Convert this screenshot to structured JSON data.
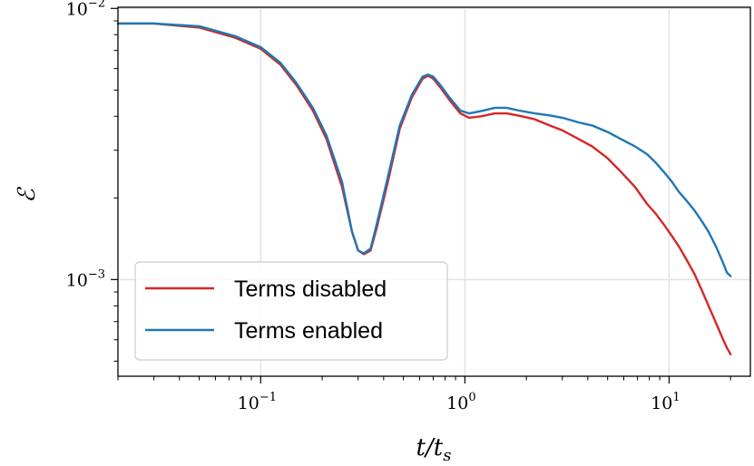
{
  "chart_data": {
    "type": "line",
    "xlabel": "t/t_s",
    "ylabel": "ℰ",
    "x_scale": "log",
    "y_scale": "log",
    "xlim": [
      0.02,
      25
    ],
    "ylim": [
      0.00044,
      0.0101
    ],
    "x_ticks": [
      {
        "value": 0.1,
        "base": "10",
        "exp": "−1"
      },
      {
        "value": 1,
        "base": "10",
        "exp": "0"
      },
      {
        "value": 10,
        "base": "10",
        "exp": "1"
      }
    ],
    "y_ticks": [
      {
        "value": 0.001,
        "base": "10",
        "exp": "−3"
      },
      {
        "value": 0.01,
        "base": "10",
        "exp": "−2"
      }
    ],
    "grid": true,
    "legend": {
      "placement": "lower-left"
    },
    "series": [
      {
        "name": "Terms disabled",
        "color": "#d62728",
        "x": [
          0.02,
          0.025,
          0.03,
          0.05,
          0.075,
          0.1,
          0.125,
          0.15,
          0.18,
          0.21,
          0.25,
          0.28,
          0.3,
          0.32,
          0.345,
          0.37,
          0.42,
          0.48,
          0.55,
          0.62,
          0.66,
          0.7,
          0.76,
          0.84,
          0.95,
          1.05,
          1.2,
          1.4,
          1.6,
          1.85,
          2.2,
          2.6,
          3.0,
          3.6,
          4.2,
          5.0,
          5.8,
          6.8,
          7.8,
          8.6,
          9.4,
          10.3,
          11.2,
          12.2,
          13.3,
          14.4,
          15.6,
          17.0,
          18.4,
          19.2,
          20.0
        ],
        "y": [
          0.0088,
          0.0088,
          0.0088,
          0.0085,
          0.0078,
          0.0071,
          0.0062,
          0.0052,
          0.0042,
          0.0033,
          0.0022,
          0.0015,
          0.00128,
          0.00124,
          0.00128,
          0.00155,
          0.0023,
          0.0036,
          0.0047,
          0.0055,
          0.00565,
          0.0055,
          0.0051,
          0.0046,
          0.0041,
          0.00395,
          0.004,
          0.0041,
          0.0041,
          0.00402,
          0.0039,
          0.0037,
          0.00355,
          0.0033,
          0.0031,
          0.0028,
          0.0025,
          0.0022,
          0.0019,
          0.00175,
          0.0016,
          0.00145,
          0.00132,
          0.00118,
          0.00105,
          0.00092,
          0.0008,
          0.00069,
          0.0006,
          0.00056,
          0.00053
        ]
      },
      {
        "name": "Terms enabled",
        "color": "#1f77b4",
        "x": [
          0.02,
          0.025,
          0.03,
          0.05,
          0.075,
          0.1,
          0.125,
          0.15,
          0.18,
          0.21,
          0.25,
          0.28,
          0.3,
          0.32,
          0.345,
          0.37,
          0.42,
          0.48,
          0.55,
          0.62,
          0.66,
          0.7,
          0.76,
          0.84,
          0.95,
          1.05,
          1.2,
          1.4,
          1.6,
          1.85,
          2.2,
          2.6,
          3.0,
          3.6,
          4.2,
          5.0,
          5.8,
          6.8,
          7.8,
          8.6,
          9.4,
          10.3,
          11.2,
          12.2,
          13.3,
          14.4,
          15.6,
          17.0,
          18.4,
          19.2,
          20.0
        ],
        "y": [
          0.0088,
          0.0088,
          0.0088,
          0.0086,
          0.0079,
          0.0072,
          0.0063,
          0.0053,
          0.0043,
          0.0034,
          0.0023,
          0.0015,
          0.00128,
          0.00125,
          0.0013,
          0.0016,
          0.0024,
          0.0037,
          0.0048,
          0.0056,
          0.0057,
          0.0056,
          0.0052,
          0.0047,
          0.0042,
          0.0041,
          0.00418,
          0.0043,
          0.0043,
          0.0042,
          0.0041,
          0.00403,
          0.00395,
          0.0038,
          0.0037,
          0.0035,
          0.0033,
          0.0031,
          0.0029,
          0.0027,
          0.0025,
          0.0023,
          0.0021,
          0.00195,
          0.0018,
          0.00165,
          0.0015,
          0.00132,
          0.00115,
          0.00106,
          0.00103
        ]
      }
    ]
  }
}
